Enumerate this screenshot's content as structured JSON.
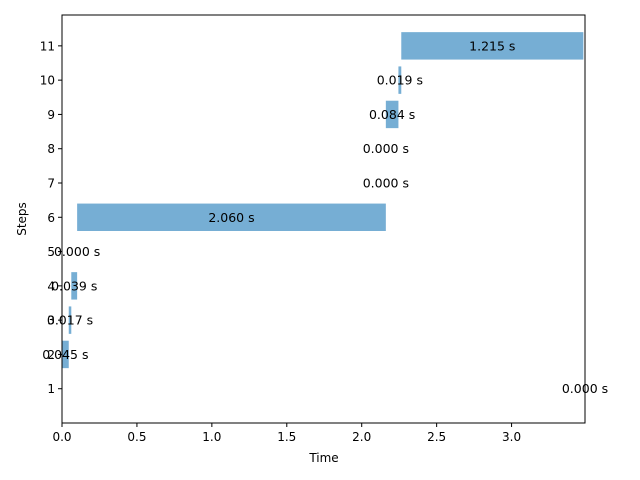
{
  "chart_data": {
    "type": "bar",
    "orientation": "horizontal",
    "xlabel": "Time",
    "ylabel": "Steps",
    "xlim": [
      0,
      3.49
    ],
    "ylim": [
      0,
      11.9
    ],
    "x_ticks": [
      0.0,
      0.5,
      1.0,
      1.5,
      2.0,
      2.5,
      3.0
    ],
    "x_tick_labels": [
      "0.0",
      "0.5",
      "1.0",
      "1.5",
      "2.0",
      "2.5",
      "3.0"
    ],
    "y_ticks": [
      1,
      2,
      3,
      4,
      5,
      6,
      7,
      8,
      9,
      10,
      11
    ],
    "y_tick_labels": [
      "1",
      "2",
      "3",
      "4",
      "5",
      "6",
      "7",
      "8",
      "9",
      "10",
      "11"
    ],
    "grid": false,
    "bar_color": "#76aed4",
    "bars": [
      {
        "step": 1,
        "start": 3.49,
        "duration": 0.0,
        "label": "0.000 s"
      },
      {
        "step": 2,
        "start": 0.0,
        "duration": 0.045,
        "label": "0.045 s"
      },
      {
        "step": 3,
        "start": 0.045,
        "duration": 0.017,
        "label": "0.017 s"
      },
      {
        "step": 4,
        "start": 0.062,
        "duration": 0.039,
        "label": "0.039 s"
      },
      {
        "step": 5,
        "start": 0.101,
        "duration": 0.0,
        "label": "0.000 s"
      },
      {
        "step": 6,
        "start": 0.101,
        "duration": 2.06,
        "label": "2.060 s"
      },
      {
        "step": 7,
        "start": 2.161,
        "duration": 0.0,
        "label": "0.000 s"
      },
      {
        "step": 8,
        "start": 2.161,
        "duration": 0.0,
        "label": "0.000 s"
      },
      {
        "step": 9,
        "start": 2.161,
        "duration": 0.084,
        "label": "0.084 s"
      },
      {
        "step": 10,
        "start": 2.245,
        "duration": 0.019,
        "label": "0.019 s"
      },
      {
        "step": 11,
        "start": 2.264,
        "duration": 1.215,
        "label": "1.215 s"
      }
    ]
  }
}
